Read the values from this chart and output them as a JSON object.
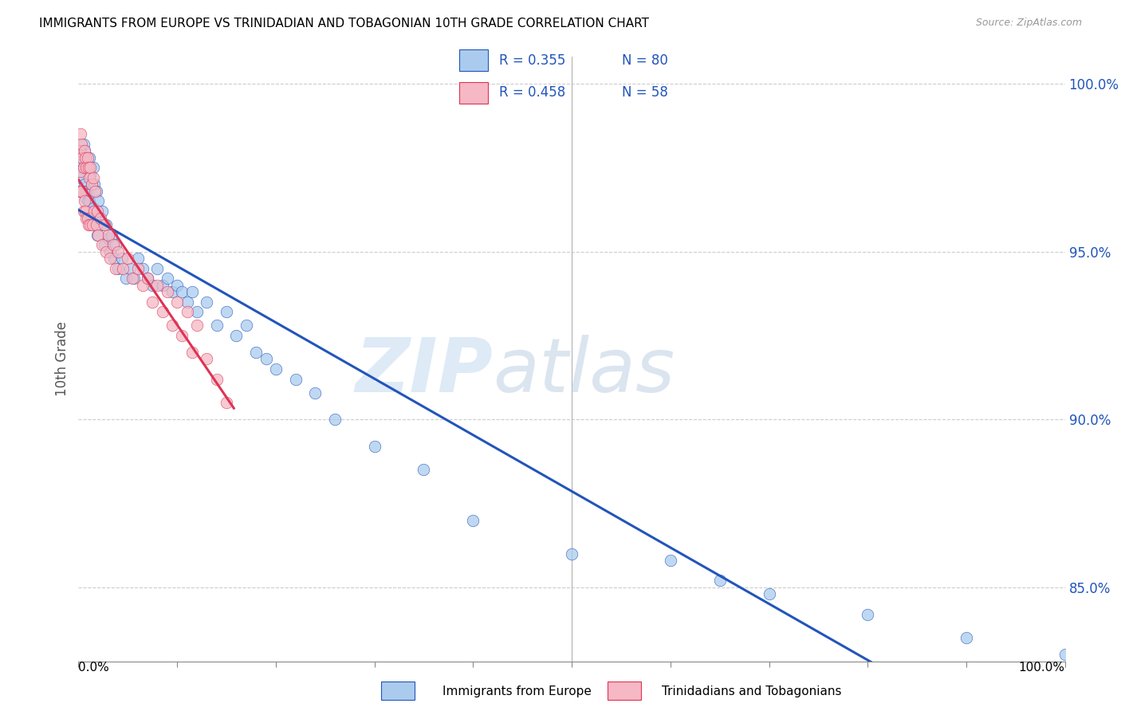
{
  "title": "IMMIGRANTS FROM EUROPE VS TRINIDADIAN AND TOBAGONIAN 10TH GRADE CORRELATION CHART",
  "source": "Source: ZipAtlas.com",
  "ylabel": "10th Grade",
  "blue_r": "R = 0.355",
  "blue_n": "N = 80",
  "pink_r": "R = 0.458",
  "pink_n": "N = 58",
  "blue_color": "#aacbee",
  "pink_color": "#f5b8c4",
  "trend_blue": "#2255bb",
  "trend_pink": "#dd3355",
  "watermark_zip": "ZIP",
  "watermark_atlas": "atlas",
  "xlim": [
    0.0,
    1.0
  ],
  "ylim": [
    0.828,
    1.008
  ],
  "yticks": [
    0.85,
    0.9,
    0.95,
    1.0
  ],
  "ytick_labels": [
    "85.0%",
    "90.0%",
    "95.0%",
    "100.0%"
  ],
  "blue_points_x": [
    0.001,
    0.001,
    0.002,
    0.002,
    0.003,
    0.004,
    0.004,
    0.005,
    0.005,
    0.006,
    0.006,
    0.007,
    0.007,
    0.008,
    0.008,
    0.009,
    0.009,
    0.01,
    0.01,
    0.011,
    0.011,
    0.012,
    0.012,
    0.013,
    0.014,
    0.015,
    0.015,
    0.016,
    0.017,
    0.018,
    0.019,
    0.02,
    0.022,
    0.024,
    0.026,
    0.028,
    0.03,
    0.032,
    0.034,
    0.036,
    0.038,
    0.04,
    0.044,
    0.048,
    0.052,
    0.056,
    0.06,
    0.065,
    0.07,
    0.075,
    0.08,
    0.085,
    0.09,
    0.095,
    0.1,
    0.105,
    0.11,
    0.115,
    0.12,
    0.13,
    0.14,
    0.15,
    0.16,
    0.17,
    0.18,
    0.19,
    0.2,
    0.22,
    0.24,
    0.26,
    0.3,
    0.35,
    0.4,
    0.5,
    0.6,
    0.65,
    0.7,
    0.8,
    0.9,
    1.0
  ],
  "blue_points_y": [
    0.974,
    0.968,
    0.98,
    0.972,
    0.978,
    0.976,
    0.968,
    0.982,
    0.975,
    0.98,
    0.97,
    0.975,
    0.966,
    0.978,
    0.968,
    0.975,
    0.965,
    0.975,
    0.967,
    0.978,
    0.965,
    0.973,
    0.96,
    0.97,
    0.96,
    0.975,
    0.963,
    0.97,
    0.96,
    0.968,
    0.955,
    0.965,
    0.958,
    0.962,
    0.952,
    0.958,
    0.954,
    0.95,
    0.955,
    0.948,
    0.952,
    0.945,
    0.948,
    0.942,
    0.945,
    0.942,
    0.948,
    0.945,
    0.942,
    0.94,
    0.945,
    0.94,
    0.942,
    0.938,
    0.94,
    0.938,
    0.935,
    0.938,
    0.932,
    0.935,
    0.928,
    0.932,
    0.925,
    0.928,
    0.92,
    0.918,
    0.915,
    0.912,
    0.908,
    0.9,
    0.892,
    0.885,
    0.87,
    0.86,
    0.858,
    0.852,
    0.848,
    0.842,
    0.835,
    0.83
  ],
  "pink_points_x": [
    0.001,
    0.001,
    0.002,
    0.002,
    0.003,
    0.003,
    0.004,
    0.005,
    0.005,
    0.006,
    0.006,
    0.007,
    0.007,
    0.008,
    0.008,
    0.009,
    0.009,
    0.01,
    0.01,
    0.011,
    0.012,
    0.012,
    0.013,
    0.014,
    0.015,
    0.016,
    0.017,
    0.018,
    0.019,
    0.02,
    0.022,
    0.024,
    0.026,
    0.028,
    0.03,
    0.032,
    0.035,
    0.038,
    0.04,
    0.045,
    0.05,
    0.055,
    0.06,
    0.065,
    0.07,
    0.075,
    0.08,
    0.085,
    0.09,
    0.095,
    0.1,
    0.105,
    0.11,
    0.115,
    0.12,
    0.13,
    0.14,
    0.15
  ],
  "pink_points_y": [
    0.98,
    0.968,
    0.985,
    0.974,
    0.982,
    0.968,
    0.978,
    0.975,
    0.962,
    0.98,
    0.965,
    0.978,
    0.962,
    0.975,
    0.96,
    0.978,
    0.96,
    0.975,
    0.958,
    0.972,
    0.975,
    0.958,
    0.97,
    0.958,
    0.972,
    0.962,
    0.968,
    0.958,
    0.962,
    0.955,
    0.96,
    0.952,
    0.958,
    0.95,
    0.955,
    0.948,
    0.952,
    0.945,
    0.95,
    0.945,
    0.948,
    0.942,
    0.945,
    0.94,
    0.942,
    0.935,
    0.94,
    0.932,
    0.938,
    0.928,
    0.935,
    0.925,
    0.932,
    0.92,
    0.928,
    0.918,
    0.912,
    0.905
  ]
}
